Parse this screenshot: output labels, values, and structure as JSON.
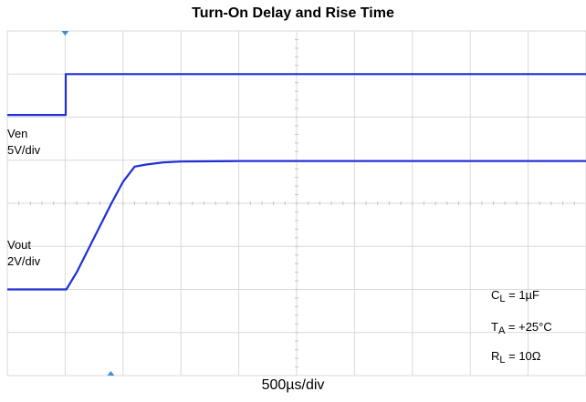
{
  "chart_data": {
    "type": "line",
    "title": "Turn-On Delay and Rise Time",
    "xlabel": "500µs/div",
    "ylabel": "",
    "grid": true,
    "x_divisions": 10,
    "y_divisions": 8,
    "x_unit": "div",
    "xlim": [
      0,
      10
    ],
    "ylim": [
      0,
      8
    ],
    "series": [
      {
        "name": "Ven",
        "scale": "5V/div",
        "color": "#1f2fd6",
        "x": [
          0,
          1.01,
          1.01,
          10
        ],
        "y": [
          6.05,
          6.05,
          7.0,
          7.0
        ]
      },
      {
        "name": "Vout",
        "scale": "2V/div",
        "color": "#1f2fd6",
        "x": [
          0,
          1.02,
          1.2,
          1.5,
          1.8,
          2.0,
          2.2,
          2.4,
          2.7,
          3.0,
          4.0,
          10
        ],
        "y": [
          2.0,
          2.0,
          2.4,
          3.2,
          4.0,
          4.5,
          4.85,
          4.9,
          4.95,
          4.97,
          4.98,
          4.98
        ]
      }
    ],
    "channel_labels": [
      {
        "name": "Ven",
        "scale": "5V/div"
      },
      {
        "name": "Vout",
        "scale": "2V/div"
      }
    ],
    "trigger_marker_x": 1.0,
    "annotations": {
      "cl": {
        "main": "C",
        "sub": "L",
        "value": " = 1µF"
      },
      "ta": {
        "main": "T",
        "sub": "A",
        "value": " = +25°C"
      },
      "rl": {
        "main": "R",
        "sub": "L",
        "value": " = 10Ω"
      }
    },
    "colors": {
      "trace": "#1f2fd6",
      "grid": "#d8d8d8",
      "marker": "#3a8fd8"
    }
  }
}
